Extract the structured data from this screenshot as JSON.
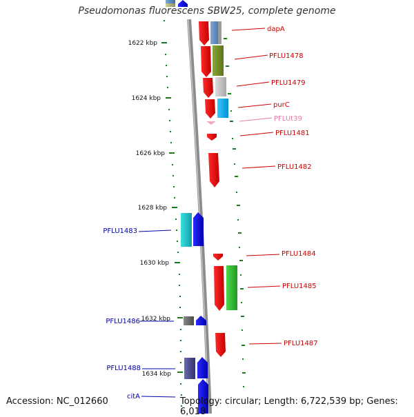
{
  "header": {
    "title": "Pseudomonas fluorescens SBW25, complete genome"
  },
  "footer": {
    "accession": "Accession: NC_012660",
    "summary": "Topology: circular; Length: 6,722,539 bp; Genes: 6,018"
  },
  "colors": {
    "backbone": "#8c8c8c",
    "tick": "#1a7a1a",
    "forward_label": "#cc0000",
    "reverse_label": "#0000aa",
    "trna_label": "#e87aa8"
  },
  "ticks": [
    {
      "label": "1622 kbp"
    },
    {
      "label": "1624 kbp"
    },
    {
      "label": "1626 kbp"
    },
    {
      "label": "1628 kbp"
    },
    {
      "label": "1630 kbp"
    },
    {
      "label": "1632 kbp"
    },
    {
      "label": "1634 kbp"
    }
  ],
  "genes": [
    {
      "label": "dapA",
      "strand": "forward"
    },
    {
      "label": "PFLU1478",
      "strand": "forward"
    },
    {
      "label": "PFLU1479",
      "strand": "forward"
    },
    {
      "label": "purC",
      "strand": "forward"
    },
    {
      "label": "PFLUt39",
      "strand": "forward",
      "kind": "tRNA"
    },
    {
      "label": "PFLU1481",
      "strand": "forward"
    },
    {
      "label": "PFLU1482",
      "strand": "forward"
    },
    {
      "label": "PFLU1483",
      "strand": "reverse"
    },
    {
      "label": "PFLU1484",
      "strand": "forward"
    },
    {
      "label": "PFLU1485",
      "strand": "forward"
    },
    {
      "label": "PFLU1486",
      "strand": "reverse"
    },
    {
      "label": "PFLU1487",
      "strand": "forward"
    },
    {
      "label": "PFLU1488",
      "strand": "reverse"
    },
    {
      "label": "citA",
      "strand": "reverse"
    }
  ]
}
